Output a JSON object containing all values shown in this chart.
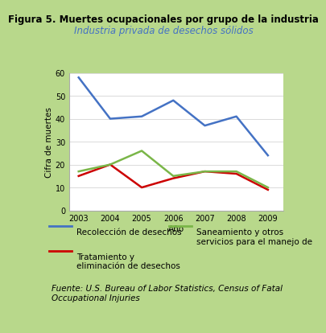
{
  "title": "Figura 5. Muertes ocupacionales por grupo de la industria",
  "subtitle": "Industria privada de desechos sólidos",
  "xlabel": "Año",
  "ylabel": "Cifra de muertes",
  "years": [
    2003,
    2004,
    2005,
    2006,
    2007,
    2008,
    2009
  ],
  "recoleccion": [
    58,
    40,
    41,
    48,
    37,
    41,
    24
  ],
  "tratamiento": [
    15,
    20,
    10,
    14,
    17,
    16,
    9
  ],
  "saneamiento": [
    17,
    20,
    26,
    15,
    17,
    17,
    10
  ],
  "color_recoleccion": "#4472C4",
  "color_tratamiento": "#CC0000",
  "color_saneamiento": "#7AB648",
  "ylim": [
    0,
    60
  ],
  "yticks": [
    0,
    10,
    20,
    30,
    40,
    50,
    60
  ],
  "legend1_label": "Recolección de desechos",
  "legend2_label": "Tratamiento y\neliminación de desechos",
  "legend3_label": "Saneamiento y otros\nservicios para el manejo de",
  "source": "Fuente: U.S. Bureau of Labor Statistics, Census of Fatal\nOccupational Injuries",
  "bg_color": "#FFFFFF",
  "outer_bg": "#B8D88B",
  "inner_border": "#A8C870",
  "title_fontsize": 8.5,
  "subtitle_fontsize": 8.5,
  "axis_fontsize": 7.5,
  "tick_fontsize": 7,
  "legend_fontsize": 7.5,
  "source_fontsize": 7.5
}
